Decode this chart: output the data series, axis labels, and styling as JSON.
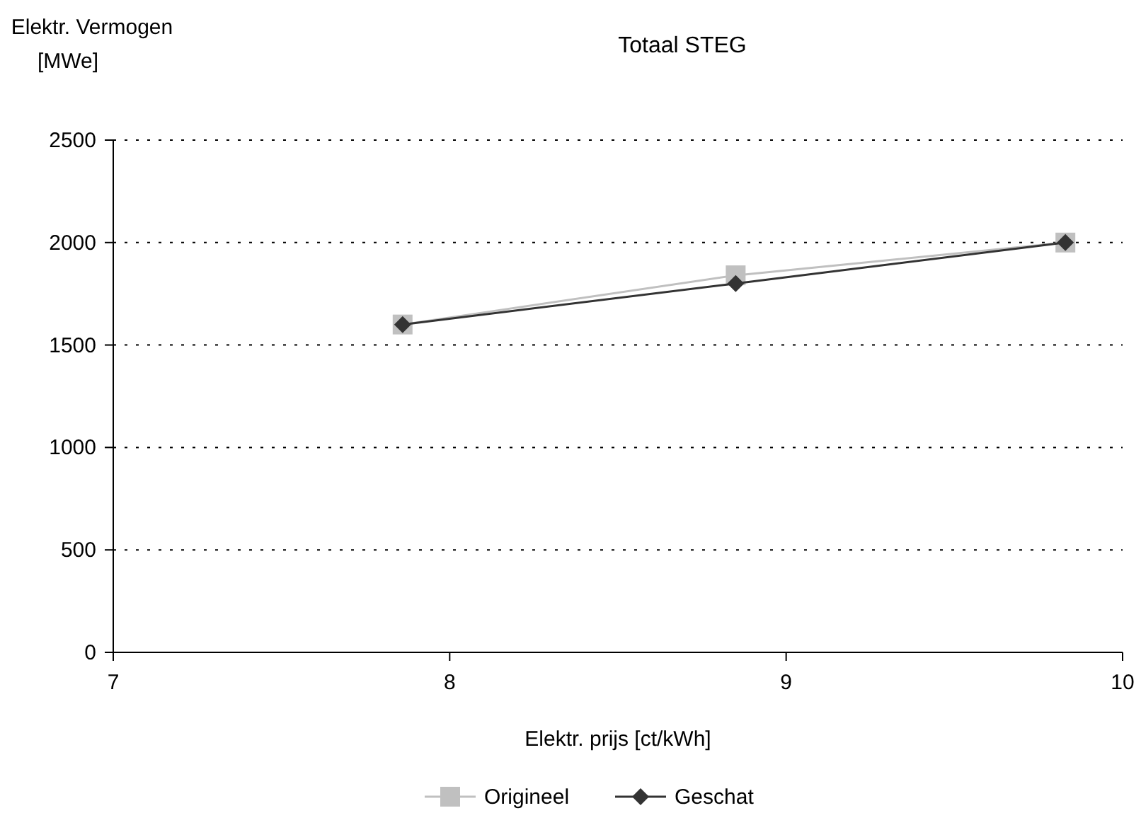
{
  "chart_data": {
    "type": "line",
    "title": "Totaal STEG",
    "xlabel": "Elektr. prijs [ct/kWh]",
    "ylabel": "Elektr. Vermogen\n[MWe]",
    "x": [
      7.86,
      8.85,
      9.83
    ],
    "series": [
      {
        "name": "Origineel",
        "color": "#c0c0c0",
        "marker": "square",
        "values": [
          1600,
          1840,
          2000
        ]
      },
      {
        "name": "Geschat",
        "color": "#333333",
        "marker": "diamond",
        "values": [
          1600,
          1800,
          2000
        ]
      }
    ],
    "xlim": [
      7,
      10
    ],
    "xticks": [
      7,
      8,
      9,
      10
    ],
    "ylim": [
      0,
      2500
    ],
    "yticks": [
      0,
      500,
      1000,
      1500,
      2000,
      2500
    ],
    "grid": "y",
    "legend": "bottom",
    "line_style": "solid"
  }
}
